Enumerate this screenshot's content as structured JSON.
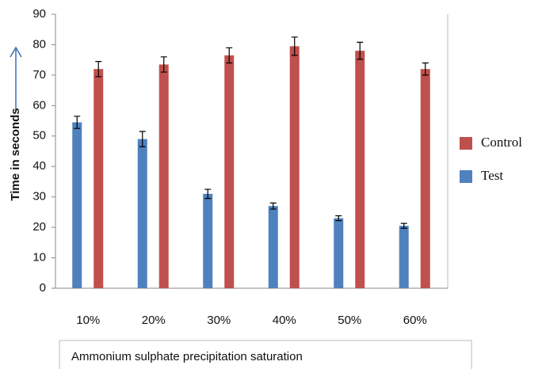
{
  "chart_data": {
    "type": "bar",
    "y_label": "Time in seconds",
    "x_label": "Ammonium sulphate precipitation saturation",
    "categories": [
      "10%",
      "20%",
      "30%",
      "40%",
      "50%",
      "60%"
    ],
    "series": [
      {
        "name": "Test",
        "color": "#4f81bd",
        "values": [
          54.5,
          49,
          31,
          27,
          23,
          20.5
        ],
        "errors": [
          2,
          2.5,
          1.5,
          1,
          0.8,
          0.8
        ]
      },
      {
        "name": "Control",
        "color": "#c0504d",
        "values": [
          72,
          73.5,
          76.5,
          79.5,
          78,
          72
        ],
        "errors": [
          2.5,
          2.5,
          2.5,
          3,
          2.8,
          2
        ]
      }
    ],
    "ylim": [
      0,
      90
    ],
    "yticks": [
      0,
      10,
      20,
      30,
      40,
      50,
      60,
      70,
      80,
      90
    ],
    "grid": false
  }
}
